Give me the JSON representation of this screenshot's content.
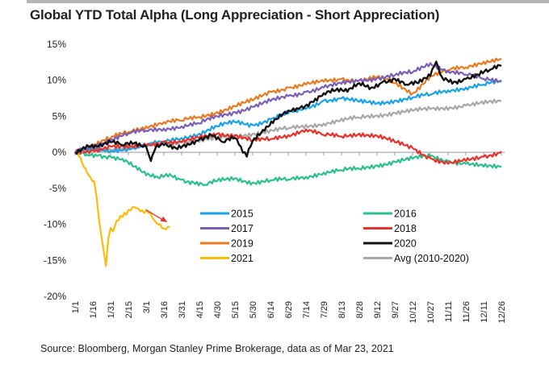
{
  "chart_data": {
    "type": "line",
    "title": "Global YTD Total Alpha (Long Appreciation - Short Appreciation)",
    "source": "Source: Bloomberg, Morgan Stanley Prime Brokerage, data as of Mar 23, 2021",
    "xlabel": "",
    "ylabel": "",
    "ylim": [
      -20,
      15
    ],
    "yticks": [
      15,
      10,
      5,
      0,
      -5,
      -10,
      -15,
      -20
    ],
    "ytick_labels": [
      "15%",
      "10%",
      "5%",
      "0%",
      "-5%",
      "-10%",
      "-15%",
      "-20%"
    ],
    "xlim_days": [
      0,
      364
    ],
    "xtick_labels": [
      "1/1",
      "1/16",
      "1/31",
      "2/15",
      "3/1",
      "3/16",
      "3/31",
      "4/15",
      "4/30",
      "5/15",
      "5/30",
      "6/14",
      "6/29",
      "7/14",
      "7/29",
      "8/13",
      "8/28",
      "9/12",
      "9/27",
      "10/12",
      "10/27",
      "11/11",
      "11/26",
      "12/11",
      "12/26"
    ],
    "grid": false,
    "legend_position": "center-right",
    "annotation": {
      "type": "arrow",
      "color": "#e8312a",
      "from_day": 60,
      "from_value": -8.0,
      "to_day": 78,
      "to_value": -9.7
    },
    "series": [
      {
        "name": "2015",
        "color": "#1aa3e8",
        "x": [
          0,
          15,
          30,
          45,
          60,
          75,
          90,
          105,
          120,
          135,
          150,
          165,
          180,
          195,
          210,
          225,
          240,
          255,
          270,
          285,
          300,
          315,
          330,
          345,
          360
        ],
        "values": [
          0,
          0.3,
          0.2,
          0.6,
          1.0,
          1.4,
          2.0,
          2.6,
          3.6,
          4.2,
          3.8,
          4.6,
          5.4,
          6.0,
          7.2,
          7.5,
          7.0,
          6.8,
          7.2,
          7.6,
          8.0,
          8.6,
          9.0,
          9.4,
          9.8
        ]
      },
      {
        "name": "2016",
        "color": "#2fbf8f",
        "x": [
          0,
          10,
          20,
          30,
          40,
          50,
          60,
          70,
          80,
          90,
          100,
          110,
          120,
          135,
          150,
          165,
          180,
          195,
          210,
          225,
          240,
          255,
          270,
          285,
          300,
          315,
          330,
          345,
          360
        ],
        "values": [
          0,
          -0.3,
          -0.4,
          -0.6,
          -0.9,
          -2.0,
          -3.2,
          -3.5,
          -3.0,
          -3.8,
          -4.2,
          -4.5,
          -4.0,
          -3.6,
          -4.2,
          -3.9,
          -3.8,
          -3.4,
          -2.8,
          -2.5,
          -2.3,
          -1.8,
          -1.3,
          -0.9,
          -0.5,
          -1.2,
          -1.6,
          -2.0,
          -2.0
        ]
      },
      {
        "name": "2017",
        "color": "#7b5fb5",
        "x": [
          0,
          15,
          30,
          45,
          60,
          75,
          90,
          105,
          120,
          135,
          150,
          165,
          180,
          195,
          210,
          225,
          240,
          255,
          270,
          285,
          300,
          315,
          330,
          345,
          360
        ],
        "values": [
          0,
          0.8,
          1.8,
          2.6,
          3.0,
          3.3,
          3.6,
          4.0,
          5.0,
          5.6,
          6.3,
          7.1,
          7.8,
          8.4,
          9.0,
          9.5,
          10.0,
          10.3,
          10.7,
          11.1,
          12.4,
          11.3,
          10.8,
          10.2,
          10.0
        ]
      },
      {
        "name": "2018",
        "color": "#e8312a",
        "x": [
          0,
          15,
          30,
          45,
          60,
          75,
          90,
          105,
          120,
          135,
          150,
          165,
          180,
          195,
          210,
          225,
          240,
          255,
          270,
          285,
          300,
          315,
          330,
          345,
          360
        ],
        "values": [
          0,
          0.3,
          0.8,
          0.6,
          1.0,
          1.5,
          1.4,
          2.0,
          2.6,
          2.4,
          1.6,
          1.8,
          2.4,
          3.2,
          2.4,
          2.2,
          2.6,
          2.3,
          1.4,
          0.6,
          -0.8,
          -1.6,
          -1.2,
          -0.6,
          0.1
        ]
      },
      {
        "name": "2019",
        "color": "#e87b22",
        "x": [
          0,
          15,
          30,
          45,
          60,
          75,
          90,
          105,
          120,
          135,
          150,
          165,
          180,
          195,
          210,
          225,
          240,
          255,
          270,
          285,
          300,
          315,
          330,
          345,
          360
        ],
        "values": [
          0,
          1.0,
          2.0,
          2.8,
          3.6,
          4.2,
          4.4,
          4.9,
          5.6,
          6.4,
          7.2,
          8.4,
          9.0,
          9.4,
          9.8,
          10.2,
          10.0,
          10.4,
          9.6,
          8.2,
          10.6,
          11.4,
          11.8,
          12.6,
          13.0
        ]
      },
      {
        "name": "2020",
        "color": "#111111",
        "x": [
          0,
          10,
          20,
          30,
          40,
          50,
          60,
          64,
          68,
          75,
          85,
          95,
          105,
          115,
          125,
          135,
          140,
          145,
          150,
          160,
          170,
          180,
          190,
          200,
          210,
          220,
          230,
          240,
          250,
          260,
          270,
          280,
          290,
          300,
          305,
          310,
          320,
          330,
          340,
          350,
          360
        ],
        "values": [
          0,
          1.0,
          0.8,
          1.4,
          1.0,
          1.3,
          0.8,
          -1.2,
          0.6,
          1.0,
          0.6,
          1.2,
          1.8,
          2.4,
          1.4,
          2.0,
          0.8,
          -0.6,
          1.6,
          3.0,
          4.6,
          5.8,
          6.2,
          7.0,
          8.2,
          8.6,
          8.4,
          9.6,
          9.0,
          9.8,
          10.2,
          9.4,
          9.6,
          10.6,
          12.6,
          10.4,
          9.8,
          10.2,
          10.8,
          11.4,
          12.0
        ]
      },
      {
        "name": "2021",
        "color": "#fbbc0d",
        "x": [
          0,
          3,
          6,
          10,
          13,
          16,
          18,
          20,
          22,
          24,
          26,
          28,
          30,
          32,
          35,
          40,
          45,
          50,
          55,
          60,
          65,
          70,
          75,
          80
        ],
        "values": [
          0,
          -0.5,
          -1.5,
          -2.8,
          -3.5,
          -4.0,
          -6.0,
          -9.0,
          -11.5,
          -13.5,
          -15.8,
          -12.0,
          -10.5,
          -11.0,
          -9.5,
          -9.0,
          -8.0,
          -7.6,
          -8.2,
          -8.0,
          -9.0,
          -10.0,
          -10.6,
          -10.4
        ]
      },
      {
        "name": "Avg (2010-2020)",
        "color": "#a8a8a8",
        "x": [
          0,
          30,
          60,
          90,
          120,
          150,
          180,
          210,
          240,
          270,
          300,
          330,
          360
        ],
        "values": [
          0,
          0.4,
          0.9,
          1.4,
          1.9,
          2.6,
          3.3,
          4.0,
          4.8,
          5.5,
          6.0,
          6.5,
          7.1
        ]
      }
    ]
  }
}
